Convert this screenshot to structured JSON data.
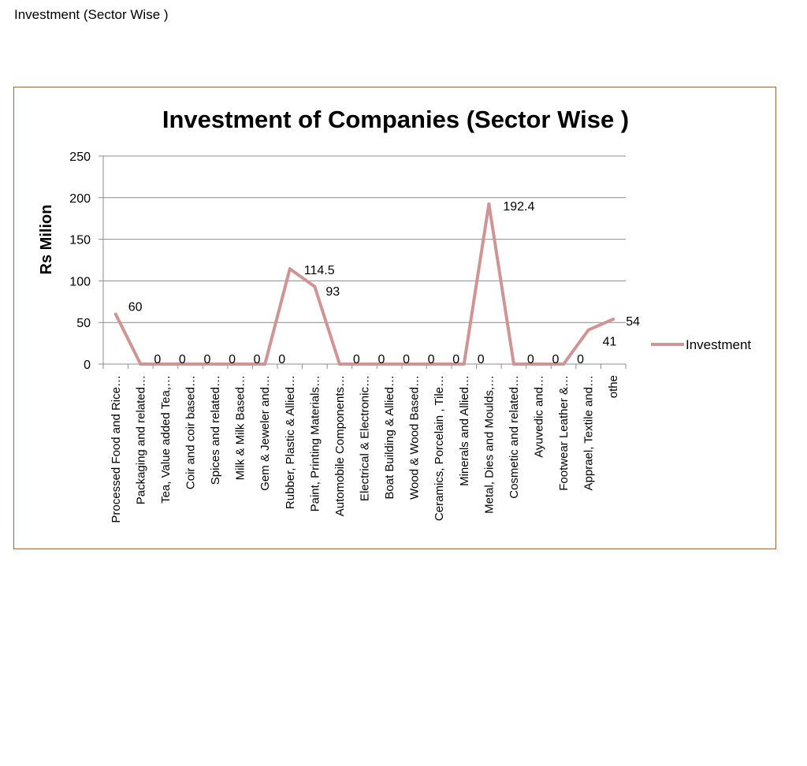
{
  "page": {
    "heading": "Investment  (Sector Wise )"
  },
  "chart_data": {
    "type": "line",
    "title": "Investment of Companies (Sector Wise )",
    "xlabel": "",
    "ylabel": "Rs Milion",
    "ylim": [
      0,
      250
    ],
    "yticks": [
      0,
      50,
      100,
      150,
      200,
      250
    ],
    "grid": true,
    "legend_position": "right",
    "categories": [
      "Processed Food and Rice…",
      "Packaging and related…",
      "Tea, Value added Tea,…",
      "Coir and coir based…",
      "Spices and related…",
      "Milk & Milk Based…",
      "Gem & Jeweler and…",
      "Rubber, Plastic & Allied…",
      "Paint, Printing Materials…",
      "Automobile Components…",
      "Electrical & Electronic…",
      "Boat Building & Allied…",
      "Wood & Wood Based…",
      "Ceramics, Porcelain , Tile…",
      "Minerals and Allied…",
      "Metal, Dies and Moulds,…",
      "Cosmetic and related…",
      "Ayuvedic and…",
      "Footwear Leather &…",
      "Apprael, Textile and…",
      "othe"
    ],
    "series": [
      {
        "name": "Investment",
        "color": "#d09494",
        "values": [
          60,
          0,
          0,
          0,
          0,
          0,
          0,
          114.5,
          93,
          0,
          0,
          0,
          0,
          0,
          0,
          192.4,
          0,
          0,
          0,
          41,
          54
        ],
        "data_labels": [
          "60",
          "0",
          "0",
          "0",
          "0",
          "0",
          "0",
          "114.5",
          "93",
          "0",
          "0",
          "0",
          "0",
          "0",
          "0",
          "192.4",
          "0",
          "0",
          "0",
          "41",
          "54"
        ]
      }
    ]
  }
}
